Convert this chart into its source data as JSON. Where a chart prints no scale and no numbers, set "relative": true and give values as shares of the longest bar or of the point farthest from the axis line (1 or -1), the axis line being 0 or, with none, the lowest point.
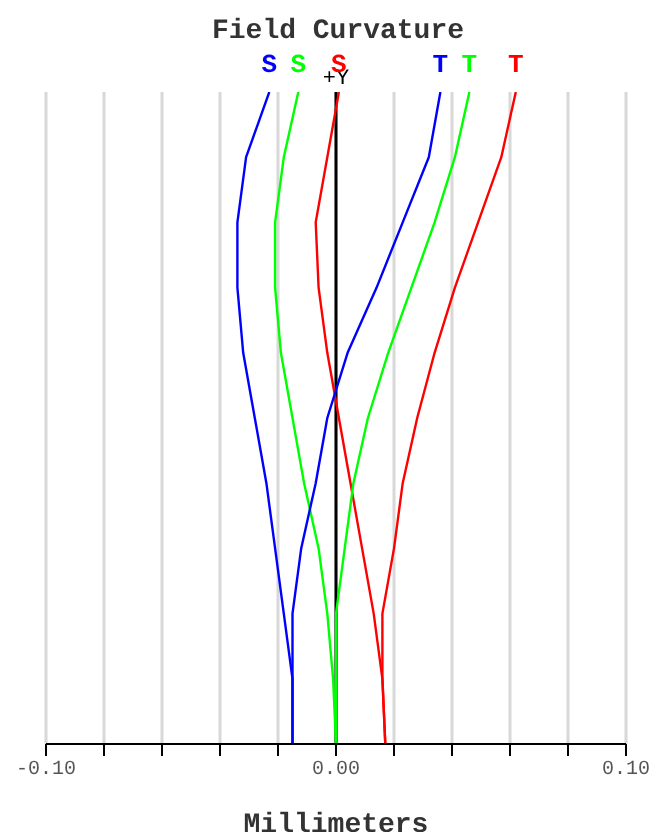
{
  "chart_data": {
    "type": "line",
    "title": "Field Curvature",
    "xlabel": "Millimeters",
    "xlim": [
      -0.1,
      0.1
    ],
    "xticks": [
      {
        "value": -0.1,
        "label": "-0.10"
      },
      {
        "value": -0.08,
        "label": null
      },
      {
        "value": -0.06,
        "label": null
      },
      {
        "value": -0.04,
        "label": null
      },
      {
        "value": -0.02,
        "label": null
      },
      {
        "value": 0,
        "label": "0.00"
      },
      {
        "value": 0.02,
        "label": null
      },
      {
        "value": 0.04,
        "label": null
      },
      {
        "value": 0.06,
        "label": null
      },
      {
        "value": 0.08,
        "label": null
      },
      {
        "value": 0.1,
        "label": "0.10"
      }
    ],
    "relative": true,
    "grid": "x",
    "marker": "none",
    "line_style": "solid",
    "ref_lines": [
      {
        "axis": "x",
        "value": 0,
        "label": "+Y",
        "color": "#000000"
      }
    ],
    "series": [
      {
        "name": "S",
        "color": "#0000ff",
        "x": [
          -0.015,
          -0.015,
          -0.018,
          -0.021,
          -0.024,
          -0.028,
          -0.032,
          -0.034,
          -0.034,
          -0.031,
          -0.023
        ],
        "values": [
          0,
          0.1,
          0.2,
          0.3,
          0.4,
          0.5,
          0.6,
          0.7,
          0.8,
          0.9,
          1
        ]
      },
      {
        "name": "S",
        "color": "#00ff00",
        "x": [
          0,
          -0.001,
          -0.003,
          -0.006,
          -0.011,
          -0.015,
          -0.019,
          -0.021,
          -0.021,
          -0.018,
          -0.013
        ],
        "values": [
          0,
          0.1,
          0.2,
          0.3,
          0.4,
          0.5,
          0.6,
          0.7,
          0.8,
          0.9,
          1
        ]
      },
      {
        "name": "S",
        "color": "#ff0000",
        "x": [
          0.017,
          0.016,
          0.013,
          0.009,
          0.005,
          0.001,
          -0.003,
          -0.006,
          -0.007,
          -0.003,
          0.001
        ],
        "values": [
          0,
          0.1,
          0.2,
          0.3,
          0.4,
          0.5,
          0.6,
          0.7,
          0.8,
          0.9,
          1
        ]
      },
      {
        "name": "T",
        "color": "#0000ff",
        "x": [
          -0.015,
          -0.015,
          -0.015,
          -0.012,
          -0.007,
          -0.003,
          0.004,
          0.014,
          0.023,
          0.032,
          0.036
        ],
        "values": [
          0,
          0.1,
          0.2,
          0.3,
          0.4,
          0.5,
          0.6,
          0.7,
          0.8,
          0.9,
          1
        ]
      },
      {
        "name": "T",
        "color": "#00ff00",
        "x": [
          0,
          0,
          0,
          0.003,
          0.006,
          0.011,
          0.018,
          0.026,
          0.034,
          0.041,
          0.046
        ],
        "values": [
          0,
          0.1,
          0.2,
          0.3,
          0.4,
          0.5,
          0.6,
          0.7,
          0.8,
          0.9,
          1
        ]
      },
      {
        "name": "T",
        "color": "#ff0000",
        "x": [
          0.017,
          0.016,
          0.016,
          0.02,
          0.023,
          0.028,
          0.034,
          0.041,
          0.049,
          0.057,
          0.062
        ],
        "values": [
          0,
          0.1,
          0.2,
          0.3,
          0.4,
          0.5,
          0.6,
          0.7,
          0.8,
          0.9,
          1
        ]
      }
    ]
  }
}
